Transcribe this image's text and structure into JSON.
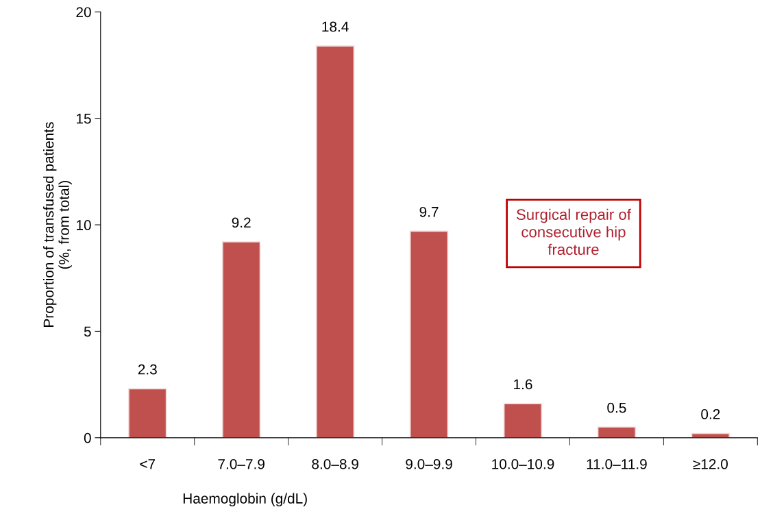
{
  "chart_data": {
    "type": "bar",
    "categories": [
      "<7",
      "7.0–7.9",
      "8.0–8.9",
      "9.0–9.9",
      "10.0–10.9",
      "11.0–11.9",
      "≥12.0"
    ],
    "values": [
      2.3,
      9.2,
      18.4,
      9.7,
      1.6,
      0.5,
      0.2
    ],
    "color": "#c0504d",
    "xlabel": "Haemoglobin (g/dL)",
    "ylabel": "Proportion of transfused patients\n(%, from total)",
    "ylim": [
      0,
      20
    ],
    "yticks": [
      0,
      5,
      10,
      15,
      20
    ],
    "data_labels": true,
    "grid": false,
    "legend": false,
    "annotations": [
      "Surgical repair of\nconsecutive hip\nfracture"
    ]
  }
}
